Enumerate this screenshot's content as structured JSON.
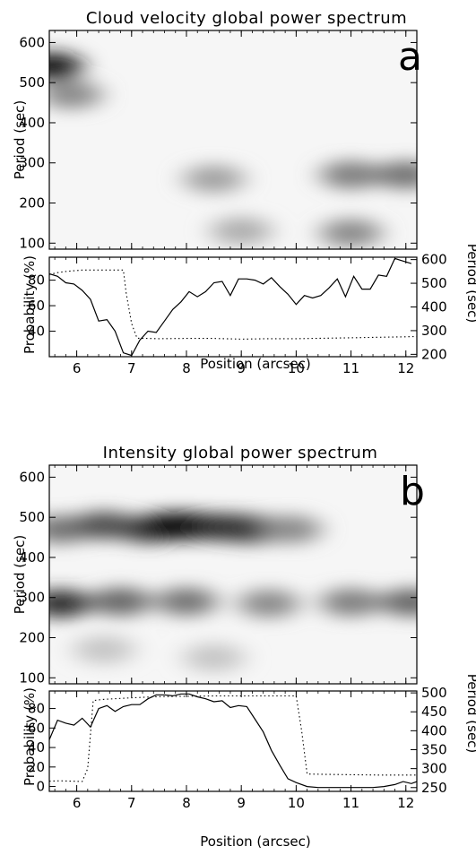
{
  "figure": {
    "panel_a": {
      "title": "Cloud velocity global power spectrum",
      "letter": "a",
      "spectrum_ylabel": "Period (sec)",
      "prob_ylabel_left": "Probability (%)",
      "prob_ylabel_right": "Period (sec)",
      "xlabel": "Position (arcsec)"
    },
    "panel_b": {
      "title": "Intensity global power spectrum",
      "letter": "b",
      "spectrum_ylabel": "Period (sec)",
      "prob_ylabel_left": "Probability (%)",
      "prob_ylabel_right": "Period (sec)",
      "xlabel": "Position (arcsec)"
    }
  },
  "chart_data": [
    {
      "type": "heatmap",
      "title": "Cloud velocity global power spectrum",
      "panel": "a",
      "xlabel": "",
      "ylabel": "Period (sec)",
      "xlim": [
        5.5,
        12.2
      ],
      "ylim": [
        85,
        630
      ],
      "x_ticks": [
        6,
        7,
        8,
        9,
        10,
        11,
        12
      ],
      "y_ticks": [
        100,
        200,
        300,
        400,
        500,
        600
      ],
      "colormap": "grayscale (dark = high power)",
      "features": [
        {
          "x": 5.55,
          "y": 540,
          "strength": 0.95
        },
        {
          "x": 5.9,
          "y": 470,
          "strength": 0.45
        },
        {
          "x": 8.5,
          "y": 260,
          "strength": 0.35
        },
        {
          "x": 11.0,
          "y": 270,
          "strength": 0.5
        },
        {
          "x": 12.0,
          "y": 270,
          "strength": 0.55
        },
        {
          "x": 9.0,
          "y": 130,
          "strength": 0.3
        },
        {
          "x": 11.0,
          "y": 125,
          "strength": 0.45
        }
      ]
    },
    {
      "type": "line",
      "panel": "a",
      "xlabel": "Position (arcsec)",
      "ylabel": "Probability (%)",
      "y2label": "Period (sec)",
      "xlim": [
        5.5,
        12.2
      ],
      "ylim": [
        20,
        98
      ],
      "y2lim": [
        190,
        610
      ],
      "x_ticks": [
        6,
        7,
        8,
        9,
        10,
        11,
        12
      ],
      "y_ticks": [
        40,
        60,
        80
      ],
      "y2_ticks": [
        200,
        300,
        400,
        500,
        600
      ],
      "series": [
        {
          "style": "solid",
          "axis": "left",
          "x": [
            5.5,
            5.65,
            5.8,
            5.95,
            6.1,
            6.25,
            6.4,
            6.55,
            6.7,
            6.85,
            7.0,
            7.15,
            7.3,
            7.45,
            7.6,
            7.75,
            7.9,
            8.05,
            8.2,
            8.35,
            8.5,
            8.65,
            8.8,
            8.95,
            9.1,
            9.25,
            9.4,
            9.55,
            9.7,
            9.85,
            10.0,
            10.15,
            10.3,
            10.45,
            10.6,
            10.75,
            10.9,
            11.05,
            11.2,
            11.35,
            11.5,
            11.65,
            11.8,
            11.95,
            12.1
          ],
          "values": [
            85,
            83,
            78,
            77,
            72,
            65,
            48,
            49,
            40,
            23,
            21,
            33,
            40,
            39,
            48,
            57,
            63,
            71,
            67,
            71,
            78,
            79,
            68,
            81,
            81,
            80,
            77,
            82,
            75,
            69,
            61,
            68,
            66,
            68,
            74,
            81,
            67,
            83,
            73,
            73,
            84,
            83,
            97,
            95,
            93
          ]
        },
        {
          "style": "dotted",
          "axis": "right",
          "x": [
            5.5,
            5.65,
            5.8,
            5.95,
            6.1,
            6.3,
            6.5,
            6.7,
            6.85,
            6.9,
            7.0,
            7.1,
            7.5,
            8.0,
            8.5,
            9.0,
            9.5,
            10.0,
            10.5,
            11.0,
            11.5,
            12.0,
            12.2
          ],
          "values": [
            537,
            545,
            550,
            553,
            556,
            556,
            556,
            556,
            556,
            460,
            330,
            268,
            266,
            267,
            267,
            264,
            266,
            266,
            268,
            270,
            272,
            274,
            275
          ]
        }
      ]
    },
    {
      "type": "heatmap",
      "title": "Intensity global power spectrum",
      "panel": "b",
      "xlabel": "",
      "ylabel": "Period (sec)",
      "xlim": [
        5.5,
        12.2
      ],
      "ylim": [
        85,
        630
      ],
      "x_ticks": [
        6,
        7,
        8,
        9,
        10,
        11,
        12
      ],
      "y_ticks": [
        100,
        200,
        300,
        400,
        500,
        600
      ],
      "colormap": "grayscale (dark = high power)",
      "features": [
        {
          "x": 5.7,
          "y": 470,
          "strength": 0.55
        },
        {
          "x": 6.5,
          "y": 480,
          "strength": 0.7
        },
        {
          "x": 7.3,
          "y": 470,
          "strength": 0.75
        },
        {
          "x": 7.7,
          "y": 478,
          "strength": 1.0
        },
        {
          "x": 8.05,
          "y": 478,
          "strength": 1.0
        },
        {
          "x": 8.7,
          "y": 475,
          "strength": 0.85
        },
        {
          "x": 9.2,
          "y": 470,
          "strength": 0.8
        },
        {
          "x": 9.9,
          "y": 470,
          "strength": 0.45
        },
        {
          "x": 5.7,
          "y": 285,
          "strength": 0.85
        },
        {
          "x": 6.8,
          "y": 290,
          "strength": 0.6
        },
        {
          "x": 8.0,
          "y": 290,
          "strength": 0.55
        },
        {
          "x": 9.5,
          "y": 285,
          "strength": 0.45
        },
        {
          "x": 11.0,
          "y": 288,
          "strength": 0.5
        },
        {
          "x": 12.1,
          "y": 288,
          "strength": 0.6
        },
        {
          "x": 6.5,
          "y": 170,
          "strength": 0.2
        },
        {
          "x": 8.5,
          "y": 150,
          "strength": 0.2
        }
      ]
    },
    {
      "type": "line",
      "panel": "b",
      "xlabel": "Position (arcsec)",
      "ylabel": "Probability (%)",
      "y2label": "Period (sec)",
      "xlim": [
        5.5,
        12.2
      ],
      "ylim": [
        -5,
        98
      ],
      "y2lim": [
        240,
        505
      ],
      "x_ticks": [
        6,
        7,
        8,
        9,
        10,
        11,
        12
      ],
      "y_ticks": [
        0,
        20,
        40,
        60,
        80
      ],
      "y2_ticks": [
        250,
        300,
        350,
        400,
        450,
        500
      ],
      "series": [
        {
          "style": "solid",
          "axis": "left",
          "x": [
            5.5,
            5.65,
            5.8,
            5.95,
            6.1,
            6.25,
            6.4,
            6.55,
            6.7,
            6.85,
            7.0,
            7.15,
            7.3,
            7.45,
            7.6,
            7.75,
            7.9,
            8.05,
            8.2,
            8.35,
            8.5,
            8.65,
            8.8,
            8.95,
            9.1,
            9.25,
            9.4,
            9.55,
            9.7,
            9.85,
            10.0,
            10.2,
            10.4,
            10.6,
            10.8,
            11.0,
            11.2,
            11.4,
            11.6,
            11.8,
            11.95,
            12.1,
            12.2
          ],
          "values": [
            48,
            68,
            65,
            63,
            70,
            61,
            80,
            83,
            77,
            82,
            84,
            84,
            90,
            94,
            94,
            93,
            95,
            95,
            92,
            90,
            87,
            88,
            81,
            83,
            82,
            69,
            56,
            37,
            22,
            8,
            4,
            0,
            -1,
            -1,
            -1,
            -1,
            -1,
            -1,
            0,
            2,
            5,
            3,
            5
          ]
        },
        {
          "style": "dotted",
          "axis": "right",
          "x": [
            5.5,
            5.7,
            5.9,
            6.1,
            6.2,
            6.3,
            6.5,
            7.0,
            7.5,
            8.0,
            8.5,
            9.0,
            9.5,
            10.0,
            10.1,
            10.2,
            10.5,
            11.0,
            11.5,
            12.0,
            12.2
          ],
          "values": [
            267,
            268,
            267,
            266,
            300,
            480,
            483,
            487,
            490,
            491,
            492,
            492,
            492,
            492,
            400,
            286,
            285,
            284,
            283,
            283,
            283
          ]
        }
      ]
    }
  ]
}
